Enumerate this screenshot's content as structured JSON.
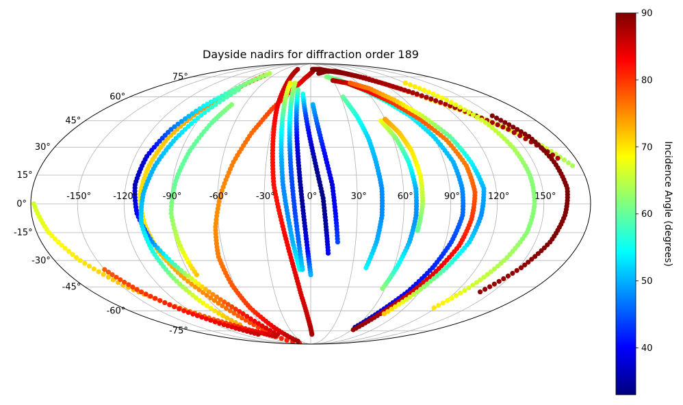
{
  "chart_data": {
    "type": "scatter",
    "projection": "mollweide",
    "title": "Dayside nadirs for diffraction order 189",
    "xlabel": "",
    "ylabel": "",
    "longitude_ticks": [
      "-150°",
      "-120°",
      "-90°",
      "-60°",
      "-30°",
      "0°",
      "30°",
      "60°",
      "90°",
      "120°",
      "150°"
    ],
    "latitude_ticks": [
      "75°",
      "60°",
      "45°",
      "30°",
      "15°",
      "0°",
      "-15°",
      "-30°",
      "-45°",
      "-60°",
      "-75°"
    ],
    "grid": true,
    "colorbar": {
      "label": "Incidence Angle (degrees)",
      "range": [
        33,
        90
      ],
      "ticks": [
        "40",
        "50",
        "60",
        "70",
        "80",
        "90"
      ],
      "colormap": "jet"
    },
    "series": [
      {
        "points": [
          [
            -64,
            -88
          ],
          [
            -72,
            -70
          ],
          [
            -84,
            -55
          ],
          [
            -96,
            -40
          ],
          [
            -104,
            -25
          ],
          [
            -108,
            -10
          ],
          [
            -110,
            5
          ],
          [
            -108,
            20
          ],
          [
            -104,
            35
          ],
          [
            -96,
            50
          ],
          [
            -86,
            63
          ],
          [
            -74,
            76
          ]
        ],
        "incidence": [
          82,
          79,
          76,
          74,
          72,
          70,
          70,
          71,
          72,
          74,
          77,
          80
        ]
      },
      {
        "points": [
          [
            -58,
            -78
          ],
          [
            -70,
            -62
          ],
          [
            -84,
            -48
          ],
          [
            -96,
            -34
          ],
          [
            -106,
            -20
          ],
          [
            -112,
            -5
          ],
          [
            -114,
            10
          ],
          [
            -112,
            25
          ],
          [
            -106,
            40
          ],
          [
            -96,
            54
          ],
          [
            -84,
            66
          ],
          [
            -72,
            78
          ]
        ],
        "incidence": [
          86,
          82,
          74,
          60,
          48,
          40,
          36,
          38,
          46,
          54,
          60,
          64
        ]
      },
      {
        "points": [
          [
            -90,
            -70
          ],
          [
            -98,
            -55
          ],
          [
            -104,
            -40
          ],
          [
            -108,
            -25
          ],
          [
            -110,
            -10
          ],
          [
            -108,
            5
          ],
          [
            -104,
            20
          ],
          [
            -98,
            35
          ],
          [
            -90,
            50
          ],
          [
            -80,
            65
          ]
        ],
        "incidence": [
          74,
          68,
          62,
          56,
          52,
          50,
          50,
          52,
          56,
          60
        ]
      },
      {
        "points": [
          [
            -85,
            -38
          ],
          [
            -88,
            -22
          ],
          [
            -90,
            -5
          ],
          [
            -88,
            12
          ],
          [
            -84,
            28
          ],
          [
            -78,
            44
          ],
          [
            -72,
            55
          ]
        ],
        "incidence": [
          72,
          66,
          62,
          60,
          60,
          60,
          62
        ]
      },
      {
        "points": [
          [
            -40,
            -85
          ],
          [
            -50,
            -72
          ],
          [
            -58,
            -58
          ],
          [
            -62,
            -44
          ],
          [
            -64,
            -28
          ],
          [
            -62,
            -12
          ],
          [
            -58,
            5
          ],
          [
            -52,
            22
          ],
          [
            -44,
            38
          ],
          [
            -34,
            52
          ],
          [
            -22,
            64
          ],
          [
            -8,
            74
          ],
          [
            8,
            82
          ]
        ],
        "incidence": [
          88,
          84,
          80,
          78,
          76,
          75,
          75,
          76,
          77,
          79,
          82,
          85,
          88
        ]
      },
      {
        "points": [
          [
            -30,
            82
          ],
          [
            -30,
            70
          ],
          [
            -30,
            55
          ],
          [
            -28,
            40
          ],
          [
            -26,
            25
          ],
          [
            -24,
            10
          ],
          [
            -20,
            -5
          ],
          [
            -16,
            -20
          ],
          [
            -12,
            -35
          ],
          [
            -8,
            -50
          ],
          [
            -3,
            -65
          ],
          [
            2,
            -78
          ]
        ],
        "incidence": [
          88,
          86,
          84,
          82,
          82,
          82,
          82,
          83,
          84,
          85,
          86,
          88
        ]
      },
      {
        "points": [
          [
            -26,
            70
          ],
          [
            -24,
            55
          ],
          [
            -22,
            40
          ],
          [
            -20,
            25
          ],
          [
            -18,
            10
          ],
          [
            -15,
            -5
          ],
          [
            -12,
            -20
          ],
          [
            -8,
            -35
          ]
        ],
        "incidence": [
          70,
          62,
          55,
          50,
          48,
          48,
          50,
          55
        ]
      },
      {
        "points": [
          [
            -20,
            70
          ],
          [
            -18,
            55
          ],
          [
            -16,
            40
          ],
          [
            -14,
            25
          ],
          [
            -12,
            10
          ],
          [
            -10,
            -5
          ],
          [
            -8,
            -20
          ],
          [
            -6,
            -35
          ]
        ],
        "incidence": [
          66,
          58,
          52,
          46,
          44,
          44,
          46,
          52
        ]
      },
      {
        "points": [
          [
            -14,
            65
          ],
          [
            -12,
            50
          ],
          [
            -10,
            35
          ],
          [
            -8,
            20
          ],
          [
            -6,
            5
          ],
          [
            -4,
            -10
          ],
          [
            -2,
            -25
          ],
          [
            0,
            -38
          ]
        ],
        "incidence": [
          60,
          48,
          40,
          36,
          34,
          36,
          40,
          50
        ]
      },
      {
        "points": [
          [
            -8,
            62
          ],
          [
            -4,
            48
          ],
          [
            0,
            33
          ],
          [
            4,
            18
          ],
          [
            8,
            3
          ],
          [
            10,
            -12
          ],
          [
            12,
            -26
          ]
        ],
        "incidence": [
          56,
          44,
          38,
          34,
          33,
          35,
          40
        ]
      },
      {
        "points": [
          [
            2,
            55
          ],
          [
            6,
            40
          ],
          [
            10,
            25
          ],
          [
            14,
            10
          ],
          [
            16,
            -5
          ],
          [
            18,
            -20
          ]
        ],
        "incidence": [
          50,
          44,
          40,
          38,
          40,
          44
        ]
      },
      {
        "points": [
          [
            4,
            82
          ],
          [
            20,
            82
          ],
          [
            40,
            80
          ],
          [
            60,
            78
          ],
          [
            80,
            74
          ],
          [
            100,
            66
          ],
          [
            120,
            56
          ],
          [
            140,
            46
          ],
          [
            160,
            34
          ],
          [
            175,
            20
          ]
        ],
        "incidence": [
          90,
          90,
          89,
          88,
          86,
          80,
          72,
          68,
          66,
          64
        ]
      },
      {
        "points": [
          [
            14,
            78
          ],
          [
            30,
            80
          ],
          [
            50,
            80
          ],
          [
            70,
            76
          ],
          [
            90,
            70
          ],
          [
            110,
            62
          ],
          [
            130,
            52
          ],
          [
            150,
            40
          ],
          [
            168,
            24
          ]
        ],
        "incidence": [
          90,
          90,
          90,
          89,
          88,
          88,
          88,
          88,
          88
        ]
      },
      {
        "points": [
          [
            24,
            75
          ],
          [
            40,
            72
          ],
          [
            56,
            66
          ],
          [
            70,
            58
          ],
          [
            82,
            48
          ],
          [
            90,
            36
          ],
          [
            96,
            22
          ],
          [
            98,
            8
          ],
          [
            98,
            -6
          ],
          [
            94,
            -20
          ],
          [
            88,
            -34
          ],
          [
            80,
            -48
          ],
          [
            70,
            -60
          ],
          [
            60,
            -72
          ]
        ],
        "incidence": [
          62,
          60,
          58,
          56,
          54,
          52,
          50,
          48,
          46,
          44,
          42,
          40,
          38,
          36
        ]
      },
      {
        "points": [
          [
            30,
            72
          ],
          [
            46,
            70
          ],
          [
            62,
            64
          ],
          [
            76,
            56
          ],
          [
            88,
            46
          ],
          [
            98,
            34
          ],
          [
            104,
            20
          ],
          [
            106,
            6
          ],
          [
            104,
            -8
          ],
          [
            100,
            -22
          ],
          [
            92,
            -36
          ],
          [
            82,
            -50
          ],
          [
            72,
            -62
          ],
          [
            62,
            -74
          ]
        ],
        "incidence": [
          88,
          86,
          84,
          80,
          78,
          76,
          76,
          78,
          80,
          82,
          84,
          86,
          88,
          89
        ]
      },
      {
        "points": [
          [
            50,
            70
          ],
          [
            66,
            66
          ],
          [
            80,
            58
          ],
          [
            92,
            48
          ],
          [
            102,
            36
          ],
          [
            108,
            22
          ],
          [
            112,
            8
          ],
          [
            110,
            -6
          ],
          [
            106,
            -20
          ],
          [
            98,
            -34
          ],
          [
            88,
            -48
          ],
          [
            76,
            -62
          ]
        ],
        "incidence": [
          78,
          76,
          72,
          66,
          60,
          54,
          50,
          48,
          52,
          58,
          64,
          72
        ]
      },
      {
        "points": [
          [
            32,
            60
          ],
          [
            38,
            48
          ],
          [
            42,
            35
          ],
          [
            44,
            22
          ],
          [
            46,
            8
          ],
          [
            46,
            -6
          ],
          [
            44,
            -20
          ],
          [
            40,
            -34
          ]
        ],
        "incidence": [
          60,
          56,
          52,
          50,
          48,
          48,
          50,
          54
        ]
      },
      {
        "points": [
          [
            56,
            45
          ],
          [
            62,
            35
          ],
          [
            66,
            22
          ],
          [
            68,
            8
          ],
          [
            68,
            -6
          ],
          [
            66,
            -20
          ],
          [
            62,
            -34
          ],
          [
            58,
            -46
          ]
        ],
        "incidence": [
          68,
          62,
          56,
          50,
          48,
          50,
          56,
          62
        ]
      },
      {
        "points": [
          [
            60,
            46
          ],
          [
            66,
            38
          ],
          [
            70,
            28
          ],
          [
            72,
            14
          ],
          [
            72,
            0
          ],
          [
            70,
            -14
          ]
        ],
        "incidence": [
          74,
          72,
          70,
          68,
          64,
          60
        ]
      },
      {
        "points": [
          [
            120,
            70
          ],
          [
            130,
            58
          ],
          [
            138,
            44
          ],
          [
            142,
            30
          ],
          [
            144,
            15
          ],
          [
            144,
            0
          ],
          [
            142,
            -15
          ],
          [
            136,
            -30
          ],
          [
            128,
            -44
          ],
          [
            118,
            -58
          ]
        ],
        "incidence": [
          70,
          68,
          66,
          64,
          62,
          62,
          62,
          64,
          66,
          70
        ]
      },
      {
        "points": [
          [
            150,
            48
          ],
          [
            160,
            36
          ],
          [
            164,
            22
          ],
          [
            166,
            8
          ],
          [
            164,
            -6
          ],
          [
            160,
            -20
          ],
          [
            152,
            -34
          ],
          [
            140,
            -48
          ]
        ],
        "incidence": [
          90,
          90,
          90,
          90,
          90,
          90,
          89,
          89
        ]
      },
      {
        "points": [
          [
            -178,
            0
          ],
          [
            -172,
            -15
          ],
          [
            -162,
            -30
          ],
          [
            -148,
            -44
          ],
          [
            -130,
            -56
          ],
          [
            -110,
            -66
          ],
          [
            -90,
            -74
          ],
          [
            -70,
            -80
          ]
        ],
        "incidence": [
          66,
          68,
          70,
          72,
          75,
          78,
          82,
          86
        ]
      },
      {
        "points": [
          [
            -150,
            -35
          ],
          [
            -140,
            -48
          ],
          [
            -126,
            -60
          ],
          [
            -110,
            -70
          ],
          [
            -92,
            -78
          ]
        ],
        "incidence": [
          78,
          80,
          82,
          84,
          86
        ]
      }
    ]
  }
}
